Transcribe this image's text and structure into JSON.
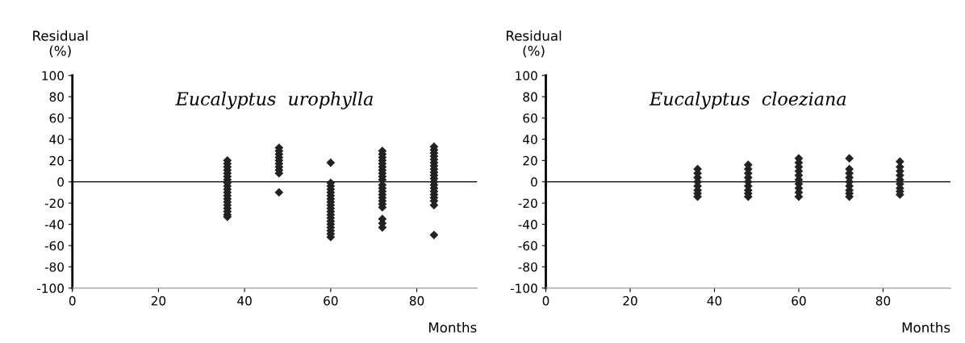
{
  "chart_data": [
    {
      "type": "scatter",
      "title": "Eucalyptus  urophylla",
      "xlabel": "Months",
      "ylabel": "Residual\n(%)",
      "xlim": [
        0,
        94
      ],
      "ylim": [
        -100,
        100
      ],
      "xticks": [
        0,
        20,
        40,
        60,
        80
      ],
      "yticks": [
        -100,
        -80,
        -60,
        -40,
        -20,
        0,
        20,
        40,
        60,
        80,
        100
      ],
      "grid": false,
      "marker": "diamond",
      "ref_lines": [
        {
          "axis": "y",
          "value": 0,
          "color": "#222222"
        }
      ],
      "series": [
        {
          "color": "#222222",
          "x": [
            36,
            36,
            36,
            36,
            36,
            36,
            36,
            36,
            36,
            36,
            36,
            36,
            36,
            36,
            36,
            36,
            36,
            36,
            36,
            48,
            48,
            48,
            48,
            48,
            48,
            48,
            48,
            48,
            48,
            60,
            60,
            60,
            60,
            60,
            60,
            60,
            60,
            60,
            60,
            60,
            60,
            60,
            60,
            60,
            60,
            60,
            60,
            60,
            72,
            72,
            72,
            72,
            72,
            72,
            72,
            72,
            72,
            72,
            72,
            72,
            72,
            72,
            72,
            72,
            72,
            72,
            72,
            72,
            72,
            84,
            84,
            84,
            84,
            84,
            84,
            84,
            84,
            84,
            84,
            84,
            84,
            84,
            84,
            84,
            84,
            84,
            84,
            84,
            84
          ],
          "values": [
            20,
            17,
            14,
            11,
            8,
            5,
            2,
            -1,
            -4,
            -7,
            -10,
            -13,
            -16,
            -19,
            -22,
            -25,
            -28,
            -31,
            -33,
            32,
            29,
            26,
            23,
            20,
            17,
            14,
            11,
            8,
            -10,
            18,
            -1,
            -4,
            -7,
            -10,
            -13,
            -16,
            -19,
            -22,
            -25,
            -28,
            -31,
            -34,
            -37,
            -40,
            -43,
            -46,
            -49,
            -52,
            29,
            26,
            23,
            20,
            17,
            14,
            11,
            8,
            5,
            2,
            -3,
            -6,
            -9,
            -12,
            -15,
            -18,
            -21,
            -24,
            -35,
            -39,
            -43,
            33,
            30,
            27,
            24,
            21,
            18,
            15,
            12,
            9,
            6,
            3,
            0,
            -3,
            -6,
            -9,
            -12,
            -15,
            -18,
            -22,
            -50
          ]
        }
      ]
    },
    {
      "type": "scatter",
      "title": "Eucalyptus  cloeziana",
      "xlabel": "Months",
      "ylabel": "Residual\n(%)",
      "xlim": [
        0,
        96
      ],
      "ylim": [
        -100,
        100
      ],
      "xticks": [
        0,
        20,
        40,
        60,
        80
      ],
      "yticks": [
        -100,
        -80,
        -60,
        -40,
        -20,
        0,
        20,
        40,
        60,
        80,
        100
      ],
      "grid": false,
      "marker": "diamond",
      "ref_lines": [
        {
          "axis": "y",
          "value": 0,
          "color": "#222222"
        }
      ],
      "series": [
        {
          "color": "#222222",
          "x": [
            36,
            36,
            36,
            36,
            36,
            36,
            36,
            36,
            48,
            48,
            48,
            48,
            48,
            48,
            48,
            48,
            48,
            60,
            60,
            60,
            60,
            60,
            60,
            60,
            60,
            60,
            60,
            72,
            72,
            72,
            72,
            72,
            72,
            72,
            72,
            72,
            84,
            84,
            84,
            84,
            84,
            84,
            84,
            84,
            84
          ],
          "values": [
            12,
            8,
            4,
            0,
            -4,
            -8,
            -11,
            -14,
            16,
            12,
            8,
            4,
            0,
            -4,
            -8,
            -11,
            -14,
            22,
            18,
            14,
            10,
            6,
            2,
            -2,
            -6,
            -10,
            -14,
            22,
            12,
            8,
            4,
            0,
            -4,
            -8,
            -11,
            -14,
            19,
            14,
            10,
            6,
            2,
            -2,
            -6,
            -9,
            -12
          ]
        }
      ]
    }
  ]
}
